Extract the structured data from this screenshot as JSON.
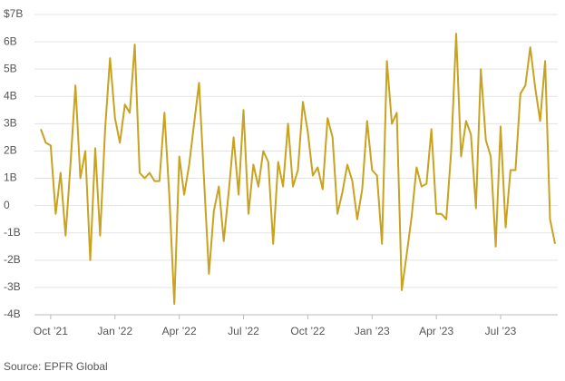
{
  "chart_data": {
    "type": "line",
    "source": "Source: EPFR Global",
    "categories": [
      null,
      null,
      "Oct ’21",
      null,
      null,
      null,
      null,
      null,
      null,
      null,
      null,
      null,
      null,
      null,
      null,
      "Jan ’22",
      null,
      null,
      null,
      null,
      null,
      null,
      null,
      null,
      null,
      null,
      null,
      null,
      "Apr ’22",
      null,
      null,
      null,
      null,
      null,
      null,
      null,
      null,
      null,
      null,
      null,
      null,
      "Jul ’22",
      null,
      null,
      null,
      null,
      null,
      null,
      null,
      null,
      null,
      null,
      null,
      null,
      "Oct ’22",
      null,
      null,
      null,
      null,
      null,
      null,
      null,
      null,
      null,
      null,
      null,
      null,
      "Jan ’23",
      null,
      null,
      null,
      null,
      null,
      null,
      null,
      null,
      null,
      null,
      null,
      null,
      "Apr ’23",
      null,
      null,
      null,
      null,
      null,
      null,
      null,
      null,
      null,
      null,
      null,
      null,
      "Jul ’23",
      null,
      null,
      null,
      null,
      null,
      null,
      null,
      null,
      null,
      null,
      null
    ],
    "series": [
      {
        "color": "#c9a21f",
        "values": [
          2.8,
          2.3,
          2.2,
          -0.3,
          1.2,
          -1.1,
          1.5,
          4.4,
          1.0,
          2.0,
          -2.0,
          2.1,
          -1.1,
          2.8,
          5.4,
          3.2,
          2.3,
          3.7,
          3.4,
          5.9,
          1.2,
          1.0,
          1.2,
          0.9,
          0.9,
          3.4,
          0.3,
          -3.6,
          1.8,
          0.4,
          1.5,
          3.0,
          4.5,
          1.0,
          -2.5,
          -0.2,
          0.7,
          -1.3,
          0.5,
          2.5,
          0.4,
          3.5,
          -0.3,
          1.5,
          0.7,
          2.0,
          1.6,
          -1.4,
          1.6,
          0.7,
          3.0,
          0.7,
          1.3,
          3.8,
          2.7,
          1.1,
          1.4,
          0.6,
          3.2,
          2.5,
          -0.3,
          0.5,
          1.5,
          0.9,
          -0.5,
          0.6,
          3.1,
          1.3,
          1.1,
          -1.4,
          5.3,
          3.0,
          3.4,
          -3.1,
          -1.8,
          -0.4,
          1.4,
          0.7,
          0.8,
          2.8,
          -0.3,
          -0.3,
          -0.5,
          2.0,
          6.3,
          1.8,
          3.1,
          2.6,
          -0.1,
          5.0,
          2.4,
          1.8,
          -1.5,
          2.9,
          -0.8,
          1.3,
          1.3,
          4.1,
          4.4,
          5.8,
          4.3,
          3.1,
          5.3,
          -0.5,
          -1.4
        ]
      }
    ],
    "ylim": [
      -4,
      7
    ],
    "yticks": [
      {
        "value": 7,
        "label": "$7B"
      },
      {
        "value": 6,
        "label": "6B"
      },
      {
        "value": 5,
        "label": "5B"
      },
      {
        "value": 4,
        "label": "4B"
      },
      {
        "value": 3,
        "label": "3B"
      },
      {
        "value": 2,
        "label": "2B"
      },
      {
        "value": 1,
        "label": "1B"
      },
      0,
      {
        "value": -1,
        "label": "-1B"
      },
      {
        "value": -2,
        "label": "-2B"
      },
      {
        "value": -3,
        "label": "-3B"
      },
      {
        "value": -4,
        "label": "-4B"
      }
    ],
    "grid": true
  }
}
